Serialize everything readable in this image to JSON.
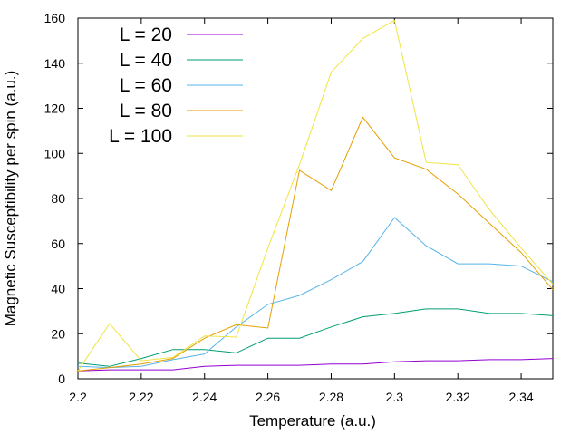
{
  "chart_data": {
    "type": "line",
    "title": "",
    "xlabel": "Temperature (a.u.)",
    "ylabel": "Magnetic Susceptibility per spin (a.u.)",
    "xlim": [
      2.2,
      2.35
    ],
    "ylim": [
      0,
      160
    ],
    "xticks": [
      2.2,
      2.22,
      2.24,
      2.26,
      2.28,
      2.3,
      2.32,
      2.34
    ],
    "xtick_labels": [
      "2.2",
      "2.22",
      "2.24",
      "2.26",
      "2.28",
      "2.3",
      "2.32",
      "2.34"
    ],
    "yticks": [
      0,
      20,
      40,
      60,
      80,
      100,
      120,
      140,
      160
    ],
    "ytick_labels": [
      "0",
      "20",
      "40",
      "60",
      "80",
      "100",
      "120",
      "140",
      "160"
    ],
    "grid": false,
    "legend_position": "top-left",
    "x": [
      2.2,
      2.21,
      2.22,
      2.23,
      2.24,
      2.25,
      2.26,
      2.27,
      2.28,
      2.29,
      2.3,
      2.31,
      2.32,
      2.33,
      2.34,
      2.35
    ],
    "series": [
      {
        "name": "L = 20",
        "color": "#9400d3",
        "values": [
          3.5,
          4,
          4,
          4,
          5.5,
          6,
          6,
          6,
          6.5,
          6.5,
          7.5,
          8,
          8,
          8.5,
          8.5,
          9
        ]
      },
      {
        "name": "L = 40",
        "color": "#009e73",
        "values": [
          7,
          5.5,
          9,
          13,
          13,
          11.5,
          18,
          18,
          23,
          27.5,
          29,
          31,
          31,
          29,
          29,
          28
        ]
      },
      {
        "name": "L = 60",
        "color": "#56b4e9",
        "values": [
          5.5,
          5,
          5.5,
          8.5,
          11,
          23,
          33,
          37,
          44,
          52,
          71.5,
          59,
          51,
          51,
          50,
          43
        ]
      },
      {
        "name": "L = 80",
        "color": "#e69f00",
        "values": [
          3.5,
          5,
          6.5,
          9,
          18,
          24,
          22.5,
          92.5,
          83.5,
          116,
          98,
          93,
          82,
          69,
          56,
          39.5
        ]
      },
      {
        "name": "L = 100",
        "color": "#f0e442",
        "values": [
          3.5,
          24.5,
          8,
          9.5,
          19,
          18.5,
          58,
          95,
          136,
          151,
          159,
          96,
          95,
          75,
          58,
          42
        ]
      }
    ]
  }
}
